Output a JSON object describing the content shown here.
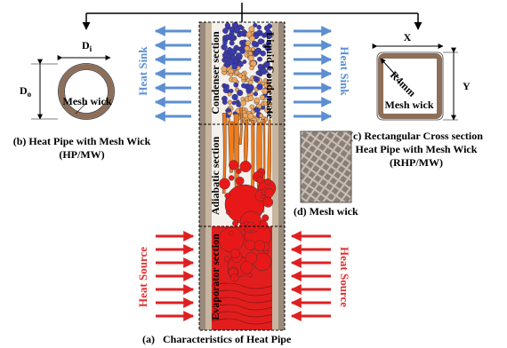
{
  "diagram": {
    "circle": {
      "di": {
        "main": "D",
        "sub": "i"
      },
      "do": {
        "main": "D",
        "sub": "o"
      },
      "wick": "Mesh wick",
      "caption": [
        "(b) Heat Pipe with Mesh Wick",
        "(HP/MW)"
      ]
    },
    "rect": {
      "x": "X",
      "y": "Y",
      "radius": "R4mm",
      "wick": "Mesh wick",
      "caption": [
        "(c) Rectangular Cross section",
        "Heat Pipe with Mesh Wick",
        "(RHP/MW)"
      ]
    },
    "pipe": {
      "heat_sink_left": "Heat Sink",
      "heat_sink_right": "Heat Sink",
      "condenser": "Condenser section",
      "condensate": "Liquid Condensate",
      "adiabatic": "Adiabatic section",
      "evaporator": "Evaporator section",
      "heat_source_left": "Heat Source",
      "heat_source_right": "Heat Source"
    },
    "mesh": {
      "caption": "(d) Mesh wick"
    },
    "caption": {
      "label": "(a)",
      "title": "Characteristics of Heat Pipe"
    }
  }
}
